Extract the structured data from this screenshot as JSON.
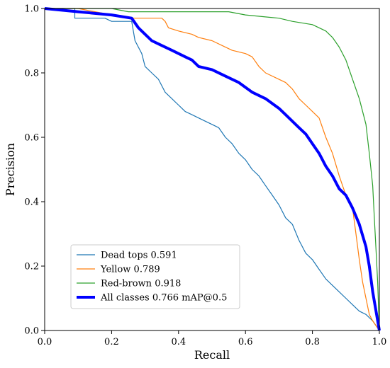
{
  "chart_data": {
    "type": "line",
    "title": "",
    "xlabel": "Recall",
    "ylabel": "Precision",
    "xlim": [
      0.0,
      1.0
    ],
    "ylim": [
      0.0,
      1.0
    ],
    "xticks": [
      "0.0",
      "0.2",
      "0.4",
      "0.6",
      "0.8",
      "1.0"
    ],
    "yticks": [
      "0.0",
      "0.2",
      "0.4",
      "0.6",
      "0.8",
      "1.0"
    ],
    "grid": false,
    "legend_position": "lower-left",
    "series": [
      {
        "name": "Dead tops 0.591",
        "color": "#1f77b4",
        "emphasis": "thin",
        "points": [
          [
            0.0,
            1.0
          ],
          [
            0.09,
            1.0
          ],
          [
            0.09,
            0.97
          ],
          [
            0.18,
            0.97
          ],
          [
            0.2,
            0.96
          ],
          [
            0.26,
            0.96
          ],
          [
            0.27,
            0.9
          ],
          [
            0.29,
            0.86
          ],
          [
            0.3,
            0.82
          ],
          [
            0.32,
            0.8
          ],
          [
            0.34,
            0.78
          ],
          [
            0.36,
            0.74
          ],
          [
            0.38,
            0.72
          ],
          [
            0.4,
            0.7
          ],
          [
            0.42,
            0.68
          ],
          [
            0.44,
            0.67
          ],
          [
            0.46,
            0.66
          ],
          [
            0.48,
            0.65
          ],
          [
            0.5,
            0.64
          ],
          [
            0.52,
            0.63
          ],
          [
            0.54,
            0.6
          ],
          [
            0.56,
            0.58
          ],
          [
            0.58,
            0.55
          ],
          [
            0.6,
            0.53
          ],
          [
            0.62,
            0.5
          ],
          [
            0.64,
            0.48
          ],
          [
            0.66,
            0.45
          ],
          [
            0.68,
            0.42
          ],
          [
            0.7,
            0.39
          ],
          [
            0.72,
            0.35
          ],
          [
            0.74,
            0.33
          ],
          [
            0.76,
            0.28
          ],
          [
            0.78,
            0.24
          ],
          [
            0.8,
            0.22
          ],
          [
            0.82,
            0.19
          ],
          [
            0.84,
            0.16
          ],
          [
            0.86,
            0.14
          ],
          [
            0.88,
            0.12
          ],
          [
            0.9,
            0.1
          ],
          [
            0.92,
            0.08
          ],
          [
            0.94,
            0.06
          ],
          [
            0.96,
            0.05
          ],
          [
            0.98,
            0.03
          ],
          [
            1.0,
            0.0
          ]
        ]
      },
      {
        "name": "Yellow 0.789",
        "color": "#ff7f0e",
        "emphasis": "thin",
        "points": [
          [
            0.0,
            1.0
          ],
          [
            0.1,
            1.0
          ],
          [
            0.2,
            0.98
          ],
          [
            0.26,
            0.97
          ],
          [
            0.35,
            0.97
          ],
          [
            0.36,
            0.96
          ],
          [
            0.37,
            0.94
          ],
          [
            0.4,
            0.93
          ],
          [
            0.44,
            0.92
          ],
          [
            0.46,
            0.91
          ],
          [
            0.5,
            0.9
          ],
          [
            0.54,
            0.88
          ],
          [
            0.56,
            0.87
          ],
          [
            0.6,
            0.86
          ],
          [
            0.62,
            0.85
          ],
          [
            0.64,
            0.82
          ],
          [
            0.66,
            0.8
          ],
          [
            0.7,
            0.78
          ],
          [
            0.72,
            0.77
          ],
          [
            0.74,
            0.75
          ],
          [
            0.76,
            0.72
          ],
          [
            0.78,
            0.7
          ],
          [
            0.8,
            0.68
          ],
          [
            0.82,
            0.66
          ],
          [
            0.84,
            0.6
          ],
          [
            0.86,
            0.55
          ],
          [
            0.88,
            0.48
          ],
          [
            0.9,
            0.42
          ],
          [
            0.92,
            0.38
          ],
          [
            0.93,
            0.3
          ],
          [
            0.94,
            0.22
          ],
          [
            0.95,
            0.15
          ],
          [
            0.96,
            0.1
          ],
          [
            0.97,
            0.05
          ],
          [
            0.98,
            0.03
          ],
          [
            1.0,
            0.0
          ]
        ]
      },
      {
        "name": "Red-brown 0.918",
        "color": "#2ca02c",
        "emphasis": "thin",
        "points": [
          [
            0.0,
            1.0
          ],
          [
            0.2,
            1.0
          ],
          [
            0.25,
            0.99
          ],
          [
            0.55,
            0.99
          ],
          [
            0.6,
            0.98
          ],
          [
            0.7,
            0.97
          ],
          [
            0.74,
            0.96
          ],
          [
            0.8,
            0.95
          ],
          [
            0.84,
            0.93
          ],
          [
            0.86,
            0.91
          ],
          [
            0.88,
            0.88
          ],
          [
            0.9,
            0.84
          ],
          [
            0.92,
            0.78
          ],
          [
            0.94,
            0.72
          ],
          [
            0.96,
            0.64
          ],
          [
            0.97,
            0.55
          ],
          [
            0.98,
            0.45
          ],
          [
            0.985,
            0.35
          ],
          [
            0.99,
            0.25
          ],
          [
            0.995,
            0.15
          ],
          [
            1.0,
            0.0
          ]
        ]
      },
      {
        "name": "All classes 0.766 mAP@0.5",
        "color": "#0000ff",
        "emphasis": "bold",
        "points": [
          [
            0.0,
            1.0
          ],
          [
            0.1,
            0.99
          ],
          [
            0.2,
            0.98
          ],
          [
            0.26,
            0.97
          ],
          [
            0.28,
            0.94
          ],
          [
            0.3,
            0.92
          ],
          [
            0.32,
            0.9
          ],
          [
            0.34,
            0.89
          ],
          [
            0.36,
            0.88
          ],
          [
            0.38,
            0.87
          ],
          [
            0.4,
            0.86
          ],
          [
            0.42,
            0.85
          ],
          [
            0.44,
            0.84
          ],
          [
            0.46,
            0.82
          ],
          [
            0.5,
            0.81
          ],
          [
            0.54,
            0.79
          ],
          [
            0.58,
            0.77
          ],
          [
            0.62,
            0.74
          ],
          [
            0.66,
            0.72
          ],
          [
            0.7,
            0.69
          ],
          [
            0.72,
            0.67
          ],
          [
            0.74,
            0.65
          ],
          [
            0.76,
            0.63
          ],
          [
            0.78,
            0.61
          ],
          [
            0.8,
            0.58
          ],
          [
            0.82,
            0.55
          ],
          [
            0.84,
            0.51
          ],
          [
            0.86,
            0.48
          ],
          [
            0.88,
            0.44
          ],
          [
            0.9,
            0.42
          ],
          [
            0.92,
            0.38
          ],
          [
            0.94,
            0.33
          ],
          [
            0.96,
            0.26
          ],
          [
            0.97,
            0.2
          ],
          [
            0.98,
            0.12
          ],
          [
            0.99,
            0.06
          ],
          [
            1.0,
            0.0
          ]
        ]
      }
    ]
  }
}
